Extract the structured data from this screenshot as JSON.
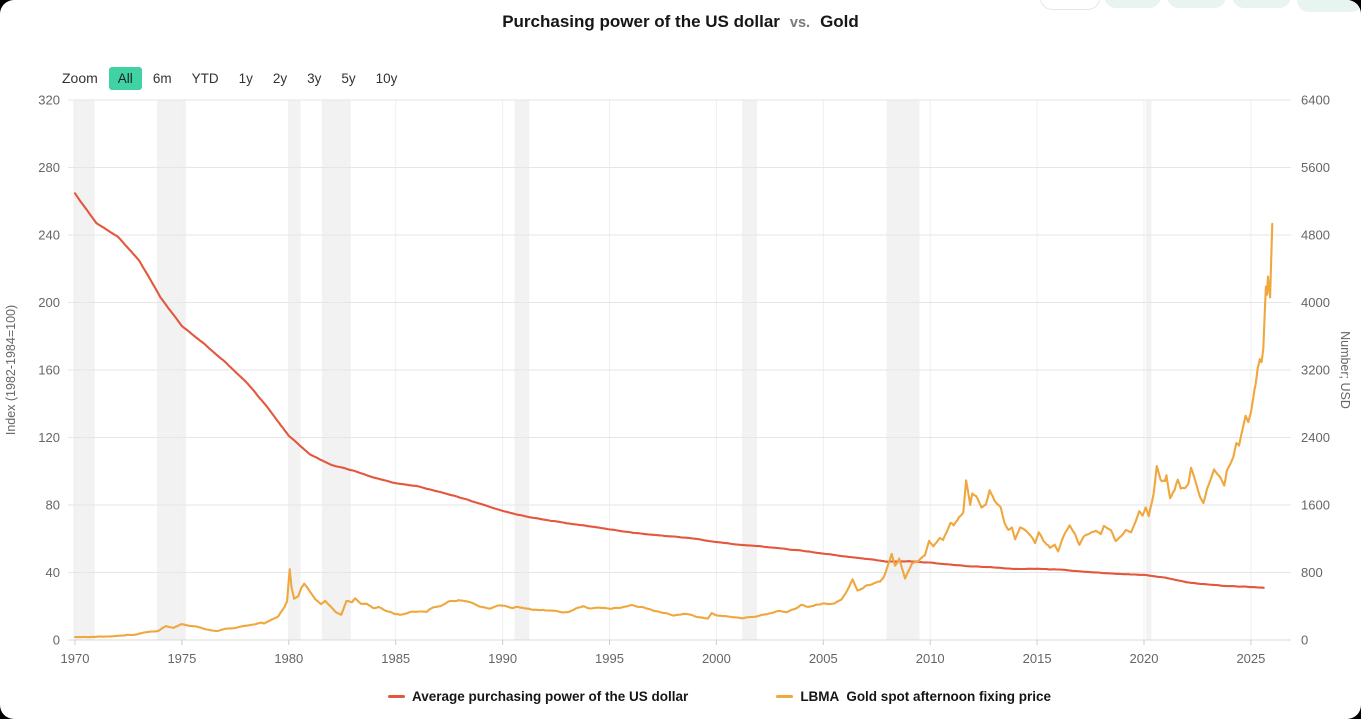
{
  "window": {
    "background": "#000000",
    "card_background": "#ffffff"
  },
  "header": {
    "title": "Purchasing power of the US dollar",
    "title_separator": "vs.",
    "title_right": "Gold"
  },
  "toolbar": {
    "zoom_label": "Zoom",
    "range_buttons": [
      {
        "label": "All",
        "active": true
      },
      {
        "label": "6m",
        "active": false
      },
      {
        "label": "YTD",
        "active": false
      },
      {
        "label": "1y",
        "active": false
      },
      {
        "label": "2y",
        "active": false
      },
      {
        "label": "3y",
        "active": false
      },
      {
        "label": "5y",
        "active": false
      },
      {
        "label": "10y",
        "active": false
      }
    ]
  },
  "legend": {
    "items": [
      {
        "label": "Average purchasing power of the US dollar",
        "color": "#e3573d"
      },
      {
        "label_prefix": "LBMA",
        "label": "Gold spot afternoon fixing price",
        "color": "#efa73e"
      }
    ]
  },
  "chart_data": {
    "type": "line",
    "title": "Purchasing power of the US dollar vs. Gold",
    "x_axis": {
      "ticks": [
        1970,
        1975,
        1980,
        1985,
        1990,
        1995,
        2000,
        2005,
        2010,
        2015,
        2020,
        2025
      ],
      "min": 1969.7,
      "max": 2026.8
    },
    "y_axis_left": {
      "title": "Index (1982-1984=100)",
      "ticks": [
        0,
        40,
        80,
        120,
        160,
        200,
        240,
        280,
        320
      ],
      "min": 0,
      "max": 320
    },
    "y_axis_right": {
      "title": "Number; USD",
      "ticks": [
        0,
        800,
        1600,
        2400,
        3200,
        4000,
        4800,
        5600,
        6400
      ],
      "min": 0,
      "max": 6400
    },
    "recession_bands": [
      [
        1969.92,
        1970.92
      ],
      [
        1973.84,
        1975.19
      ],
      [
        1980.0,
        1980.55
      ],
      [
        1981.55,
        1982.9
      ],
      [
        1990.55,
        1991.25
      ],
      [
        2001.2,
        2001.9
      ],
      [
        2007.95,
        2009.5
      ],
      [
        2020.1,
        2020.35
      ]
    ],
    "grid_color": "#e6e6e6",
    "band_color": "#f2f2f2",
    "legend_position": "bottom",
    "series": [
      {
        "name": "Average purchasing power of the US dollar",
        "axis": "left",
        "color": "#e3573d",
        "points": [
          [
            1970,
            264.5
          ],
          [
            1971,
            247
          ],
          [
            1972,
            239
          ],
          [
            1973,
            225
          ],
          [
            1974,
            203
          ],
          [
            1975,
            186
          ],
          [
            1976,
            176
          ],
          [
            1977,
            165
          ],
          [
            1978,
            153
          ],
          [
            1979,
            138
          ],
          [
            1980,
            121
          ],
          [
            1981,
            110
          ],
          [
            1982,
            103.6
          ],
          [
            1983,
            100.4
          ],
          [
            1984,
            96.2
          ],
          [
            1985,
            92.9
          ],
          [
            1986,
            91.2
          ],
          [
            1987,
            88
          ],
          [
            1988,
            84.5
          ],
          [
            1989,
            80.6
          ],
          [
            1990,
            76.5
          ],
          [
            1991,
            73.4
          ],
          [
            1992,
            71.3
          ],
          [
            1993,
            69.2
          ],
          [
            1994,
            67.5
          ],
          [
            1995,
            65.6
          ],
          [
            1996,
            63.7
          ],
          [
            1997,
            62.3
          ],
          [
            1998,
            61.3
          ],
          [
            1999,
            60
          ],
          [
            2000,
            58.1
          ],
          [
            2001,
            56.5
          ],
          [
            2002,
            55.6
          ],
          [
            2003,
            54.3
          ],
          [
            2004,
            52.9
          ],
          [
            2005,
            51.2
          ],
          [
            2006,
            49.6
          ],
          [
            2007,
            48.2
          ],
          [
            2008,
            46.4
          ],
          [
            2009,
            46.6
          ],
          [
            2010,
            45.9
          ],
          [
            2011,
            44.5
          ],
          [
            2012,
            43.6
          ],
          [
            2013,
            42.9
          ],
          [
            2014,
            42.2
          ],
          [
            2015,
            42.2
          ],
          [
            2016,
            41.7
          ],
          [
            2017,
            40.8
          ],
          [
            2018,
            39.8
          ],
          [
            2019,
            39.1
          ],
          [
            2020,
            38.6
          ],
          [
            2021,
            36.9
          ],
          [
            2022,
            34.2
          ],
          [
            2023,
            32.8
          ],
          [
            2024,
            31.9
          ],
          [
            2025.6,
            31.1
          ]
        ]
      },
      {
        "name": "LBMA Gold spot afternoon fixing price",
        "axis": "right",
        "color": "#efa73e",
        "points": [
          [
            1970,
            36
          ],
          [
            1970.5,
            35
          ],
          [
            1971,
            39
          ],
          [
            1971.5,
            40
          ],
          [
            1972,
            46
          ],
          [
            1972.5,
            60
          ],
          [
            1972.9,
            64
          ],
          [
            1973.25,
            90
          ],
          [
            1973.6,
            100
          ],
          [
            1973.9,
            106
          ],
          [
            1974.25,
            165
          ],
          [
            1974.6,
            145
          ],
          [
            1974.95,
            185
          ],
          [
            1975.3,
            170
          ],
          [
            1975.7,
            160
          ],
          [
            1976.1,
            128
          ],
          [
            1976.65,
            105
          ],
          [
            1977,
            132
          ],
          [
            1977.5,
            145
          ],
          [
            1978,
            170
          ],
          [
            1978.4,
            185
          ],
          [
            1978.7,
            208
          ],
          [
            1978.85,
            195
          ],
          [
            1979.2,
            240
          ],
          [
            1979.5,
            280
          ],
          [
            1979.8,
            390
          ],
          [
            1979.92,
            455
          ],
          [
            1980.04,
            850
          ],
          [
            1980.13,
            630
          ],
          [
            1980.25,
            490
          ],
          [
            1980.45,
            515
          ],
          [
            1980.6,
            625
          ],
          [
            1980.72,
            665
          ],
          [
            1981,
            560
          ],
          [
            1981.25,
            490
          ],
          [
            1981.5,
            420
          ],
          [
            1981.7,
            460
          ],
          [
            1981.95,
            400
          ],
          [
            1982.2,
            330
          ],
          [
            1982.45,
            300
          ],
          [
            1982.7,
            460
          ],
          [
            1982.95,
            445
          ],
          [
            1983.1,
            490
          ],
          [
            1983.4,
            420
          ],
          [
            1983.65,
            425
          ],
          [
            1983.95,
            382
          ],
          [
            1984.2,
            392
          ],
          [
            1984.6,
            345
          ],
          [
            1984.95,
            310
          ],
          [
            1985.2,
            300
          ],
          [
            1985.5,
            320
          ],
          [
            1985.8,
            330
          ],
          [
            1986.1,
            345
          ],
          [
            1986.45,
            340
          ],
          [
            1986.75,
            390
          ],
          [
            1987.1,
            405
          ],
          [
            1987.5,
            450
          ],
          [
            1987.95,
            480
          ],
          [
            1988.3,
            450
          ],
          [
            1988.65,
            430
          ],
          [
            1989,
            395
          ],
          [
            1989.4,
            370
          ],
          [
            1989.8,
            405
          ],
          [
            1990.15,
            405
          ],
          [
            1990.45,
            368
          ],
          [
            1990.65,
            395
          ],
          [
            1991,
            375
          ],
          [
            1991.4,
            358
          ],
          [
            1991.9,
            360
          ],
          [
            1992.35,
            340
          ],
          [
            1992.75,
            332
          ],
          [
            1993.1,
            328
          ],
          [
            1993.45,
            378
          ],
          [
            1993.75,
            403
          ],
          [
            1994.1,
            378
          ],
          [
            1994.55,
            385
          ],
          [
            1995,
            378
          ],
          [
            1995.5,
            385
          ],
          [
            1996.05,
            415
          ],
          [
            1996.55,
            388
          ],
          [
            1997.05,
            352
          ],
          [
            1997.55,
            322
          ],
          [
            1998,
            292
          ],
          [
            1998.45,
            308
          ],
          [
            1998.9,
            290
          ],
          [
            1999.35,
            258
          ],
          [
            1999.6,
            255
          ],
          [
            1999.78,
            325
          ],
          [
            2000.05,
            288
          ],
          [
            2000.5,
            278
          ],
          [
            2001,
            265
          ],
          [
            2001.3,
            258
          ],
          [
            2001.7,
            272
          ],
          [
            2002.1,
            295
          ],
          [
            2002.55,
            318
          ],
          [
            2002.95,
            345
          ],
          [
            2003.3,
            335
          ],
          [
            2003.7,
            370
          ],
          [
            2003.98,
            415
          ],
          [
            2004.3,
            392
          ],
          [
            2004.7,
            420
          ],
          [
            2005.1,
            428
          ],
          [
            2005.5,
            432
          ],
          [
            2005.85,
            480
          ],
          [
            2006.05,
            550
          ],
          [
            2006.37,
            720
          ],
          [
            2006.6,
            585
          ],
          [
            2006.95,
            635
          ],
          [
            2007.3,
            665
          ],
          [
            2007.65,
            690
          ],
          [
            2007.85,
            750
          ],
          [
            2008.2,
            1010
          ],
          [
            2008.35,
            885
          ],
          [
            2008.55,
            965
          ],
          [
            2008.82,
            730
          ],
          [
            2009.15,
            905
          ],
          [
            2009.45,
            930
          ],
          [
            2009.75,
            1010
          ],
          [
            2009.95,
            1180
          ],
          [
            2010.15,
            1105
          ],
          [
            2010.45,
            1210
          ],
          [
            2010.6,
            1185
          ],
          [
            2010.95,
            1400
          ],
          [
            2011.1,
            1355
          ],
          [
            2011.35,
            1450
          ],
          [
            2011.55,
            1515
          ],
          [
            2011.68,
            1900
          ],
          [
            2011.78,
            1760
          ],
          [
            2011.87,
            1620
          ],
          [
            2011.97,
            1755
          ],
          [
            2012.15,
            1710
          ],
          [
            2012.4,
            1565
          ],
          [
            2012.6,
            1610
          ],
          [
            2012.78,
            1780
          ],
          [
            2013,
            1665
          ],
          [
            2013.3,
            1560
          ],
          [
            2013.48,
            1380
          ],
          [
            2013.65,
            1290
          ],
          [
            2013.82,
            1330
          ],
          [
            2013.97,
            1200
          ],
          [
            2014.2,
            1340
          ],
          [
            2014.5,
            1295
          ],
          [
            2014.78,
            1215
          ],
          [
            2014.9,
            1150
          ],
          [
            2015.08,
            1280
          ],
          [
            2015.3,
            1180
          ],
          [
            2015.6,
            1090
          ],
          [
            2015.82,
            1135
          ],
          [
            2015.98,
            1055
          ],
          [
            2016.25,
            1240
          ],
          [
            2016.52,
            1360
          ],
          [
            2016.78,
            1255
          ],
          [
            2016.98,
            1130
          ],
          [
            2017.25,
            1235
          ],
          [
            2017.5,
            1255
          ],
          [
            2017.75,
            1295
          ],
          [
            2017.98,
            1250
          ],
          [
            2018.12,
            1350
          ],
          [
            2018.45,
            1300
          ],
          [
            2018.68,
            1180
          ],
          [
            2018.95,
            1235
          ],
          [
            2019.15,
            1295
          ],
          [
            2019.4,
            1280
          ],
          [
            2019.62,
            1425
          ],
          [
            2019.78,
            1525
          ],
          [
            2019.93,
            1480
          ],
          [
            2020.08,
            1585
          ],
          [
            2020.22,
            1475
          ],
          [
            2020.45,
            1735
          ],
          [
            2020.6,
            2050
          ],
          [
            2020.78,
            1900
          ],
          [
            2020.98,
            1885
          ],
          [
            2021.05,
            1950
          ],
          [
            2021.22,
            1685
          ],
          [
            2021.42,
            1780
          ],
          [
            2021.58,
            1905
          ],
          [
            2021.72,
            1790
          ],
          [
            2021.92,
            1805
          ],
          [
            2022.08,
            1855
          ],
          [
            2022.2,
            2040
          ],
          [
            2022.45,
            1845
          ],
          [
            2022.62,
            1705
          ],
          [
            2022.78,
            1630
          ],
          [
            2022.95,
            1800
          ],
          [
            2023.12,
            1905
          ],
          [
            2023.28,
            2025
          ],
          [
            2023.52,
            1940
          ],
          [
            2023.75,
            1825
          ],
          [
            2023.87,
            1990
          ],
          [
            2024.02,
            2065
          ],
          [
            2024.18,
            2165
          ],
          [
            2024.32,
            2330
          ],
          [
            2024.45,
            2305
          ],
          [
            2024.6,
            2480
          ],
          [
            2024.75,
            2655
          ],
          [
            2024.88,
            2580
          ],
          [
            2025,
            2700
          ],
          [
            2025.12,
            2880
          ],
          [
            2025.22,
            3030
          ],
          [
            2025.32,
            3240
          ],
          [
            2025.42,
            3330
          ],
          [
            2025.5,
            3290
          ],
          [
            2025.58,
            3450
          ],
          [
            2025.65,
            3900
          ],
          [
            2025.7,
            4200
          ],
          [
            2025.75,
            4100
          ],
          [
            2025.8,
            4310
          ],
          [
            2025.85,
            4150
          ],
          [
            2025.9,
            4060
          ],
          [
            2025.95,
            4510
          ],
          [
            2026,
            4940
          ]
        ]
      }
    ]
  }
}
